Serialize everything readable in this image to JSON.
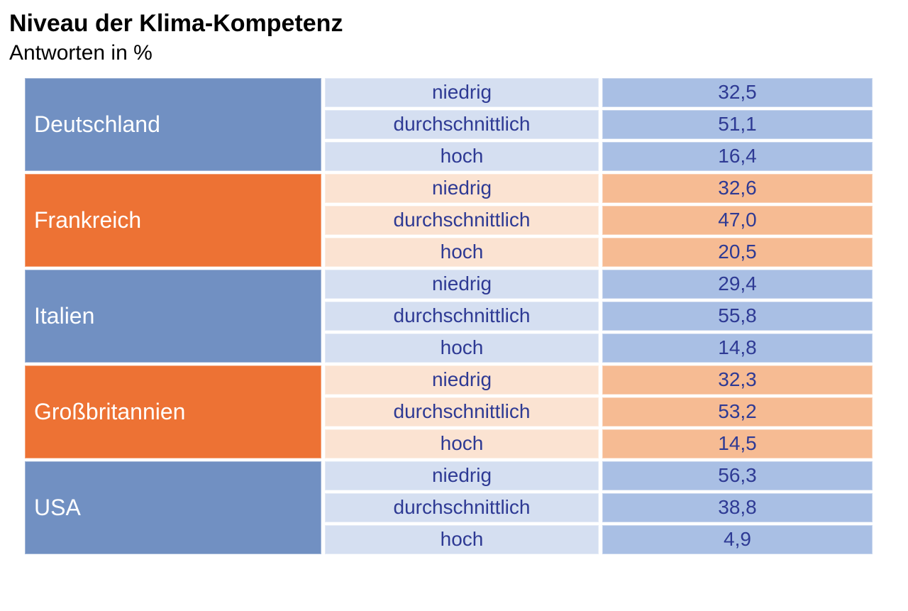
{
  "title": "Niveau der Klima-Kompetenz",
  "subtitle": "Antworten in %",
  "colors": {
    "country_blue": "#7190c2",
    "country_orange": "#ed7234",
    "level_cell_blue": "#d5dff1",
    "value_cell_blue": "#a9bfe4",
    "level_cell_orange": "#fbe3d2",
    "value_cell_orange": "#f6bb93",
    "cell_text_navy": "#2e3a94",
    "country_text": "#ffffff",
    "title_text": "#000000"
  },
  "chart_data": {
    "type": "table",
    "title": "Niveau der Klima-Kompetenz",
    "subtitle": "Antworten in %",
    "unit": "percent",
    "levels": [
      "niedrig",
      "durchschnittlich",
      "hoch"
    ],
    "rows": [
      {
        "country": "Deutschland",
        "theme": "blue",
        "values": [
          "32,5",
          "51,1",
          "16,4"
        ],
        "values_numeric": [
          32.5,
          51.1,
          16.4
        ]
      },
      {
        "country": "Frankreich",
        "theme": "orange",
        "values": [
          "32,6",
          "47,0",
          "20,5"
        ],
        "values_numeric": [
          32.6,
          47.0,
          20.5
        ]
      },
      {
        "country": "Italien",
        "theme": "blue",
        "values": [
          "29,4",
          "55,8",
          "14,8"
        ],
        "values_numeric": [
          29.4,
          55.8,
          14.8
        ]
      },
      {
        "country": "Großbritannien",
        "theme": "orange",
        "values": [
          "32,3",
          "53,2",
          "14,5"
        ],
        "values_numeric": [
          32.3,
          53.2,
          14.5
        ]
      },
      {
        "country": "USA",
        "theme": "blue",
        "values": [
          "56,3",
          "38,8",
          "4,9"
        ],
        "values_numeric": [
          56.3,
          38.8,
          4.9
        ]
      }
    ]
  }
}
